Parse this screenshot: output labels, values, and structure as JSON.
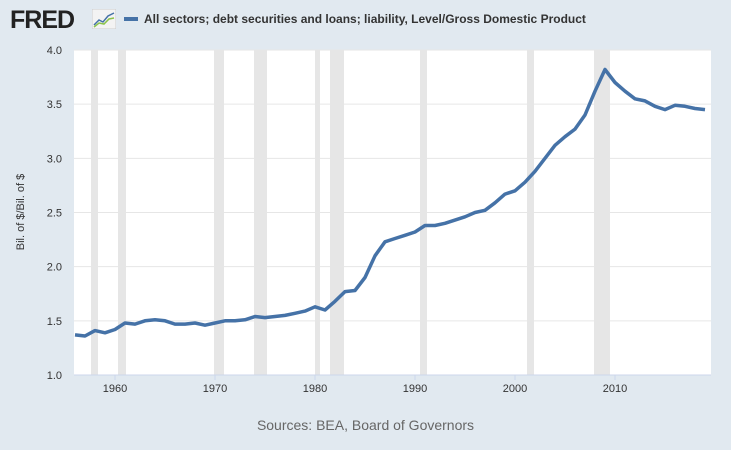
{
  "header": {
    "logo": "FRED",
    "logo_icon": "chart-line-icon"
  },
  "source": "Sources: BEA, Board of Governors",
  "colors": {
    "line": "#4572a7",
    "recession": "#e6e6e6",
    "background": "#e1e9f0"
  },
  "chart_data": {
    "type": "line",
    "title": "",
    "legend": [
      "All sectors; debt securities and loans; liability, Level/Gross Domestic Product"
    ],
    "legend_position": "top-left",
    "xlabel": "",
    "ylabel": "Bil. of $/Bil. of $",
    "xlim": [
      1955.9,
      2019.6
    ],
    "ylim": [
      1.0,
      4.0
    ],
    "xticks": [
      1960,
      1970,
      1980,
      1990,
      2000,
      2010
    ],
    "xtick_labels": [
      "1960",
      "1970",
      "1980",
      "1990",
      "2000",
      "2010"
    ],
    "yticks": [
      1.0,
      1.5,
      2.0,
      2.5,
      3.0,
      3.5,
      4.0
    ],
    "ytick_labels": [
      "1.0",
      "1.5",
      "2.0",
      "2.5",
      "3.0",
      "3.5",
      "4.0"
    ],
    "grid": true,
    "recessions": [
      [
        1957.6,
        1958.3
      ],
      [
        1960.3,
        1961.1
      ],
      [
        1969.9,
        1970.9
      ],
      [
        1973.9,
        1975.2
      ],
      [
        1980.0,
        1980.5
      ],
      [
        1981.5,
        1982.9
      ],
      [
        1990.5,
        1991.2
      ],
      [
        2001.2,
        2001.9
      ],
      [
        2007.9,
        2009.5
      ]
    ],
    "series": [
      {
        "name": "All sectors; debt securities and loans; liability, Level/Gross Domestic Product",
        "x": [
          1956,
          1957,
          1958,
          1959,
          1960,
          1961,
          1962,
          1963,
          1964,
          1965,
          1966,
          1967,
          1968,
          1969,
          1970,
          1971,
          1972,
          1973,
          1974,
          1975,
          1976,
          1977,
          1978,
          1979,
          1980,
          1981,
          1982,
          1983,
          1984,
          1985,
          1986,
          1987,
          1988,
          1989,
          1990,
          1991,
          1992,
          1993,
          1994,
          1995,
          1996,
          1997,
          1998,
          1999,
          2000,
          2001,
          2002,
          2003,
          2004,
          2005,
          2006,
          2007,
          2008,
          2009,
          2010,
          2011,
          2012,
          2013,
          2014,
          2015,
          2016,
          2017,
          2018,
          2019
        ],
        "values": [
          1.37,
          1.36,
          1.41,
          1.39,
          1.42,
          1.48,
          1.47,
          1.5,
          1.51,
          1.5,
          1.47,
          1.47,
          1.48,
          1.46,
          1.48,
          1.5,
          1.5,
          1.51,
          1.54,
          1.53,
          1.54,
          1.55,
          1.57,
          1.59,
          1.63,
          1.6,
          1.68,
          1.77,
          1.78,
          1.9,
          2.1,
          2.23,
          2.26,
          2.29,
          2.32,
          2.38,
          2.38,
          2.4,
          2.43,
          2.46,
          2.5,
          2.52,
          2.59,
          2.67,
          2.7,
          2.78,
          2.88,
          3.0,
          3.12,
          3.2,
          3.27,
          3.4,
          3.62,
          3.82,
          3.7,
          3.62,
          3.55,
          3.53,
          3.48,
          3.45,
          3.49,
          3.48,
          3.46,
          3.45
        ]
      }
    ]
  }
}
